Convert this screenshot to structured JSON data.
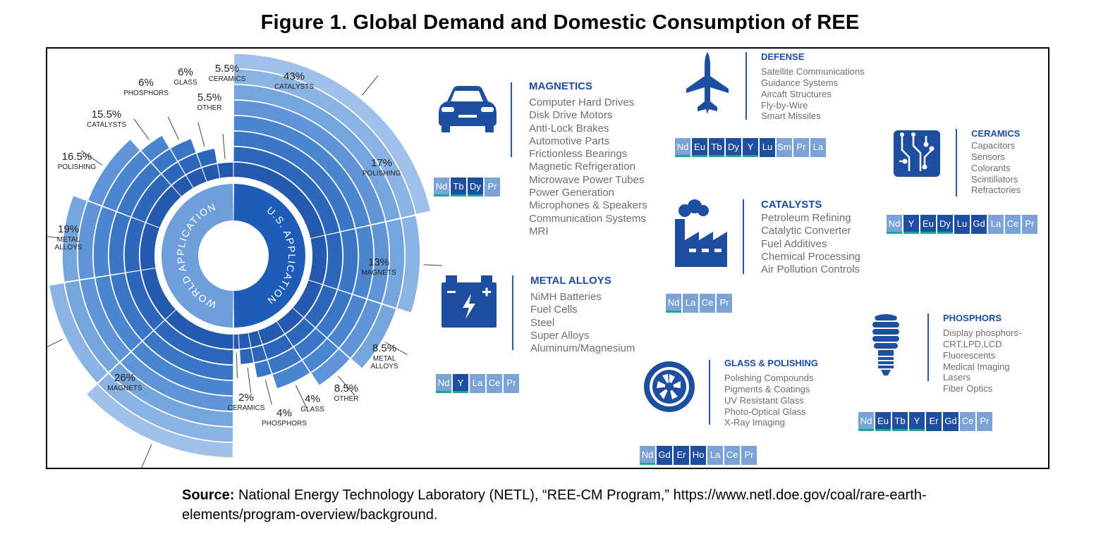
{
  "title": "Figure 1. Global Demand and Domestic Consumption of REE",
  "colors": {
    "accent": "#1d4ea0",
    "teal": "#1aa693",
    "ring_white": "#ffffff"
  },
  "chart_data": {
    "type": "pie",
    "subtype": "double sunburst (left half = world, right half = U.S.)",
    "inner_labels": {
      "world": "WORLD APPLICATION",
      "us": "U.S. APPLICATION"
    },
    "series": [
      {
        "name": "U.S. Application",
        "slices": [
          {
            "category": "CATALYSTS",
            "pct": "43%",
            "value": 43
          },
          {
            "category": "POLISHING",
            "pct": "17%",
            "value": 17
          },
          {
            "category": "MAGNETS",
            "pct": "13%",
            "value": 13
          },
          {
            "category": "METAL ALLOYS",
            "pct": "8.5%",
            "value": 8.5
          },
          {
            "category": "OTHER",
            "pct": "8.5%",
            "value": 8.5
          },
          {
            "category": "GLASS",
            "pct": "4%",
            "value": 4
          },
          {
            "category": "PHOSPHORS",
            "pct": "4%",
            "value": 4
          },
          {
            "category": "CERAMICS",
            "pct": "2%",
            "value": 2
          }
        ]
      },
      {
        "name": "World Application",
        "slices": [
          {
            "category": "MAGNETS",
            "pct": "26%",
            "value": 26
          },
          {
            "category": "METAL ALLOYS",
            "pct": "19%",
            "value": 19
          },
          {
            "category": "POLISHING",
            "pct": "16.5%",
            "value": 16.5
          },
          {
            "category": "CATALYSTS",
            "pct": "15.5%",
            "value": 15.5
          },
          {
            "category": "PHOSPHORS",
            "pct": "6%",
            "value": 6
          },
          {
            "category": "GLASS",
            "pct": "6%",
            "value": 6
          },
          {
            "category": "OTHER",
            "pct": "5.5%",
            "value": 5.5
          },
          {
            "category": "CERAMICS",
            "pct": "5.5%",
            "value": 5.5
          }
        ]
      }
    ]
  },
  "applications": [
    {
      "id": "magnetics",
      "icon": "car-icon",
      "title": "MAGNETICS",
      "items": [
        "Computer Hard Drives",
        "Disk Drive Motors",
        "Anti-Lock Brakes",
        "Automotive Parts",
        "Frictionless Bearings",
        "Magnetic Refrigeration",
        "Microwave Power Tubes",
        "Power Generation",
        "Microphones & Speakers",
        "Communication Systems",
        "MRI"
      ],
      "elements": [
        {
          "sym": "Nd",
          "color": "#7ba3d8",
          "teal": true
        },
        {
          "sym": "Tb",
          "color": "#1d4ea0",
          "teal": true
        },
        {
          "sym": "Dy",
          "color": "#1d4ea0",
          "teal": true
        },
        {
          "sym": "Pr",
          "color": "#7ba3d8",
          "teal": false
        }
      ]
    },
    {
      "id": "metal-alloys",
      "icon": "battery-icon",
      "title": "METAL ALLOYS",
      "items": [
        "NiMH Batteries",
        "Fuel Cells",
        "Steel",
        "Super Alloys",
        "Aluminum/Magnesium"
      ],
      "elements": [
        {
          "sym": "Nd",
          "color": "#7ba3d8",
          "teal": true
        },
        {
          "sym": "Y",
          "color": "#1d4ea0",
          "teal": true
        },
        {
          "sym": "La",
          "color": "#7ba3d8",
          "teal": false
        },
        {
          "sym": "Ce",
          "color": "#7ba3d8",
          "teal": false
        },
        {
          "sym": "Pr",
          "color": "#7ba3d8",
          "teal": false
        }
      ]
    },
    {
      "id": "defense",
      "icon": "fighter-jet-icon",
      "title": "DEFENSE",
      "items": [
        "Satellite Communications",
        "Guidance Systems",
        "Aircaft Structures",
        "Fly-by-Wire",
        "Smart Missiles"
      ],
      "elements": [
        {
          "sym": "Nd",
          "color": "#7ba3d8",
          "teal": true
        },
        {
          "sym": "Eu",
          "color": "#1d4ea0",
          "teal": true
        },
        {
          "sym": "Tb",
          "color": "#1d4ea0",
          "teal": true
        },
        {
          "sym": "Dy",
          "color": "#1d4ea0",
          "teal": true
        },
        {
          "sym": "Y",
          "color": "#1d4ea0",
          "teal": true
        },
        {
          "sym": "Lu",
          "color": "#1d4ea0",
          "teal": false
        },
        {
          "sym": "Sm",
          "color": "#7ba3d8",
          "teal": false
        },
        {
          "sym": "Pr",
          "color": "#7ba3d8",
          "teal": false
        },
        {
          "sym": "La",
          "color": "#7ba3d8",
          "teal": false
        }
      ]
    },
    {
      "id": "catalysts",
      "icon": "factory-icon",
      "title": "CATALYSTS",
      "items": [
        "Petroleum Refining",
        "Catalytic Converter",
        "Fuel Additives",
        "Chemical Processing",
        "Air Pollution Controls"
      ],
      "elements": [
        {
          "sym": "Nd",
          "color": "#7ba3d8",
          "teal": true
        },
        {
          "sym": "La",
          "color": "#7ba3d8",
          "teal": false
        },
        {
          "sym": "Ce",
          "color": "#7ba3d8",
          "teal": false
        },
        {
          "sym": "Pr",
          "color": "#7ba3d8",
          "teal": false
        }
      ]
    },
    {
      "id": "glass-polishing",
      "icon": "camera-aperture-icon",
      "title": "GLASS & POLISHING",
      "items": [
        "Polishing Compounds",
        "Pigments & Coatings",
        "UV Resistant Glass",
        "Photo-Optical Glass",
        "X-Ray Imaging"
      ],
      "elements": [
        {
          "sym": "Nd",
          "color": "#7ba3d8",
          "teal": true
        },
        {
          "sym": "Gd",
          "color": "#1d4ea0",
          "teal": false
        },
        {
          "sym": "Er",
          "color": "#1d4ea0",
          "teal": false
        },
        {
          "sym": "Ho",
          "color": "#1d4ea0",
          "teal": false
        },
        {
          "sym": "La",
          "color": "#7ba3d8",
          "teal": false
        },
        {
          "sym": "Ce",
          "color": "#7ba3d8",
          "teal": false
        },
        {
          "sym": "Pr",
          "color": "#7ba3d8",
          "teal": false
        }
      ]
    },
    {
      "id": "ceramics",
      "icon": "circuit-chip-icon",
      "title": "CERAMICS",
      "items": [
        "Capacitors",
        "Sensors",
        "Colorants",
        "Scintillators",
        "Refractories"
      ],
      "elements": [
        {
          "sym": "Nd",
          "color": "#7ba3d8",
          "teal": true
        },
        {
          "sym": "Y",
          "color": "#1d4ea0",
          "teal": true
        },
        {
          "sym": "Eu",
          "color": "#1d4ea0",
          "teal": true
        },
        {
          "sym": "Dy",
          "color": "#1d4ea0",
          "teal": true
        },
        {
          "sym": "Lu",
          "color": "#1d4ea0",
          "teal": false
        },
        {
          "sym": "Gd",
          "color": "#1d4ea0",
          "teal": false
        },
        {
          "sym": "La",
          "color": "#7ba3d8",
          "teal": false
        },
        {
          "sym": "Ce",
          "color": "#7ba3d8",
          "teal": false
        },
        {
          "sym": "Pr",
          "color": "#7ba3d8",
          "teal": false
        }
      ]
    },
    {
      "id": "phosphors",
      "icon": "light-bulb-icon",
      "title": "PHOSPHORS",
      "items": [
        "Display phosphors-",
        " CRT,LPD,LCD",
        "Fluorescents",
        "Medical Imaging",
        "Lasers",
        "Fiber Optics"
      ],
      "elements": [
        {
          "sym": "Nd",
          "color": "#7ba3d8",
          "teal": true
        },
        {
          "sym": "Eu",
          "color": "#1d4ea0",
          "teal": true
        },
        {
          "sym": "Tb",
          "color": "#1d4ea0",
          "teal": true
        },
        {
          "sym": "Y",
          "color": "#1d4ea0",
          "teal": true
        },
        {
          "sym": "Er",
          "color": "#1d4ea0",
          "teal": false
        },
        {
          "sym": "Gd",
          "color": "#1d4ea0",
          "teal": false
        },
        {
          "sym": "Ce",
          "color": "#7ba3d8",
          "teal": false
        },
        {
          "sym": "Pr",
          "color": "#7ba3d8",
          "teal": false
        }
      ]
    }
  ],
  "source": {
    "label": "Source:",
    "text": "National Energy Technology Laboratory (NETL), “REE-CM Program,” https://www.netl.doe.gov/coal/rare-earth-elements/program-overview/background."
  }
}
